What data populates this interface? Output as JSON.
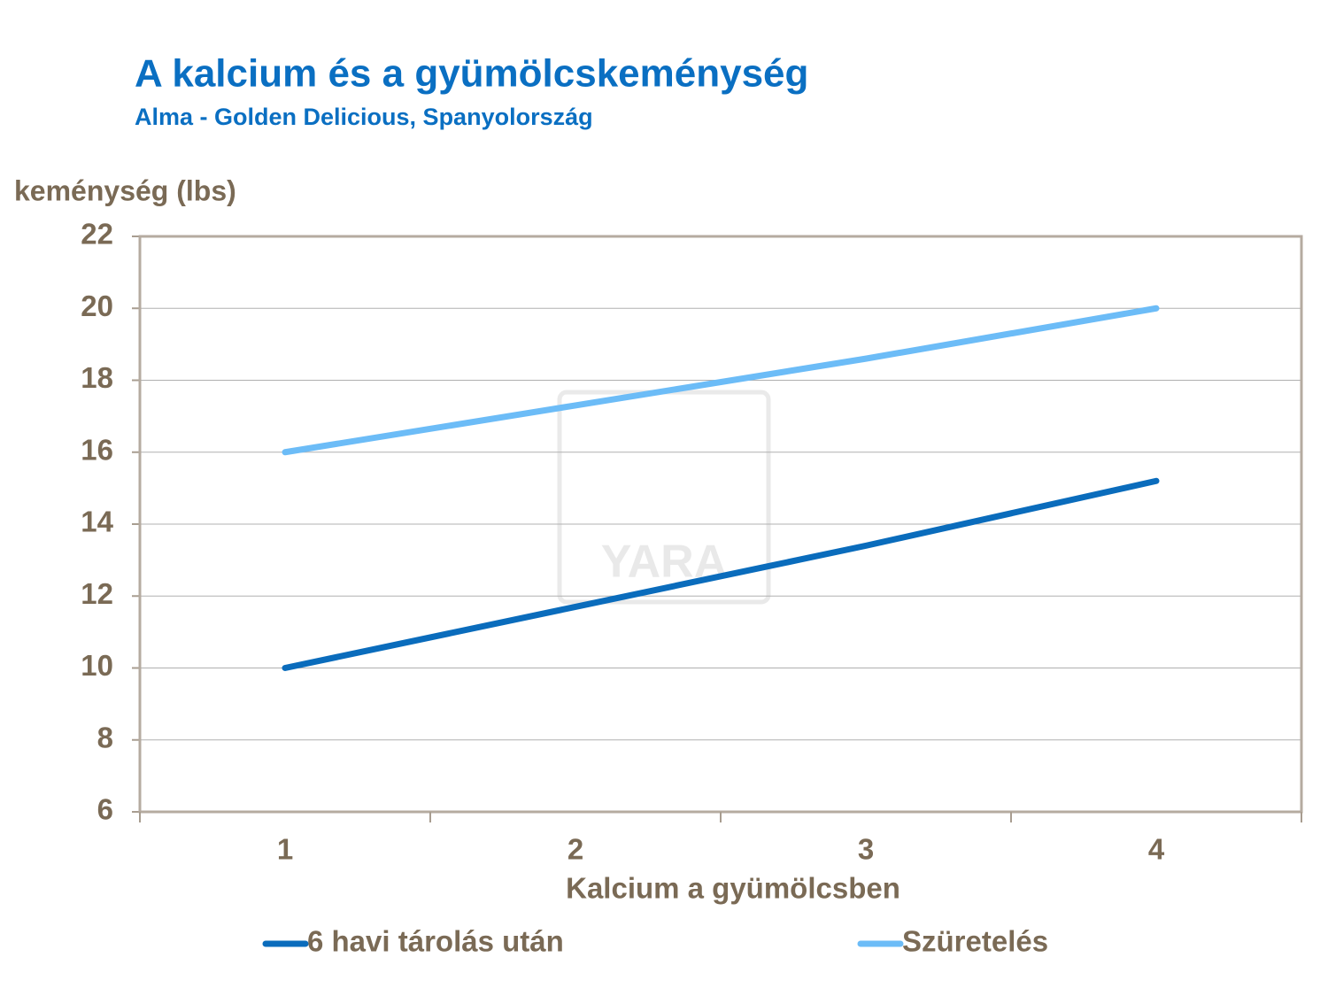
{
  "chart_data": {
    "type": "line",
    "title": "A kalcium és a gyümölcskeménység",
    "subtitle": "Alma - Golden Delicious, Spanyolország",
    "y_label": "keménység (lbs)",
    "x_label": "Kalcium a gyümölcsben",
    "watermark": "YARA",
    "categories": [
      "1",
      "2",
      "3",
      "4"
    ],
    "series": [
      {
        "name": "6 havi tárolás után",
        "color": "#0a6cbc",
        "values": [
          10,
          11.7,
          13.4,
          15.2
        ]
      },
      {
        "name": "Szüretelés",
        "color": "#6cbcf7",
        "values": [
          16,
          17.3,
          18.6,
          20
        ]
      }
    ],
    "ylim": [
      6,
      22
    ],
    "yticks": [
      6,
      8,
      10,
      12,
      14,
      16,
      18,
      20,
      22
    ],
    "grid": true
  }
}
